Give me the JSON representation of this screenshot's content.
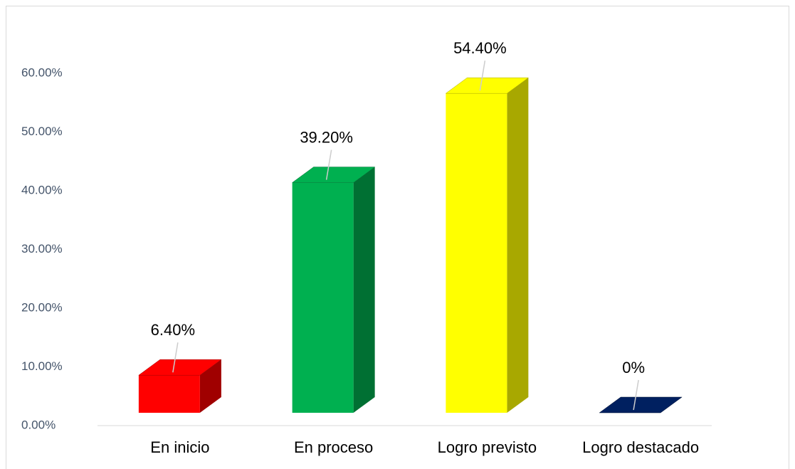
{
  "chart_data": {
    "type": "bar3d",
    "categories": [
      "En inicio",
      "En proceso",
      "Logro previsto",
      "Logro destacado"
    ],
    "values": [
      6.4,
      39.2,
      54.4,
      0
    ],
    "value_labels": [
      "6.40%",
      "39.20%",
      "54.40%",
      "0%"
    ],
    "colors": [
      "#ff0000",
      "#00b050",
      "#ffff00",
      "#002060"
    ],
    "side_colors": [
      "#a00000",
      "#007033",
      "#a8a800",
      "#001030"
    ],
    "ylim": [
      0,
      60
    ],
    "yticks": [
      {
        "value": 0,
        "label": "0.00%"
      },
      {
        "value": 10,
        "label": "10.00%"
      },
      {
        "value": 20,
        "label": "20.00%"
      },
      {
        "value": 30,
        "label": "30.00%"
      },
      {
        "value": 40,
        "label": "40.00%"
      },
      {
        "value": 50,
        "label": "50.00%"
      },
      {
        "value": 60,
        "label": "60.00%"
      }
    ]
  }
}
